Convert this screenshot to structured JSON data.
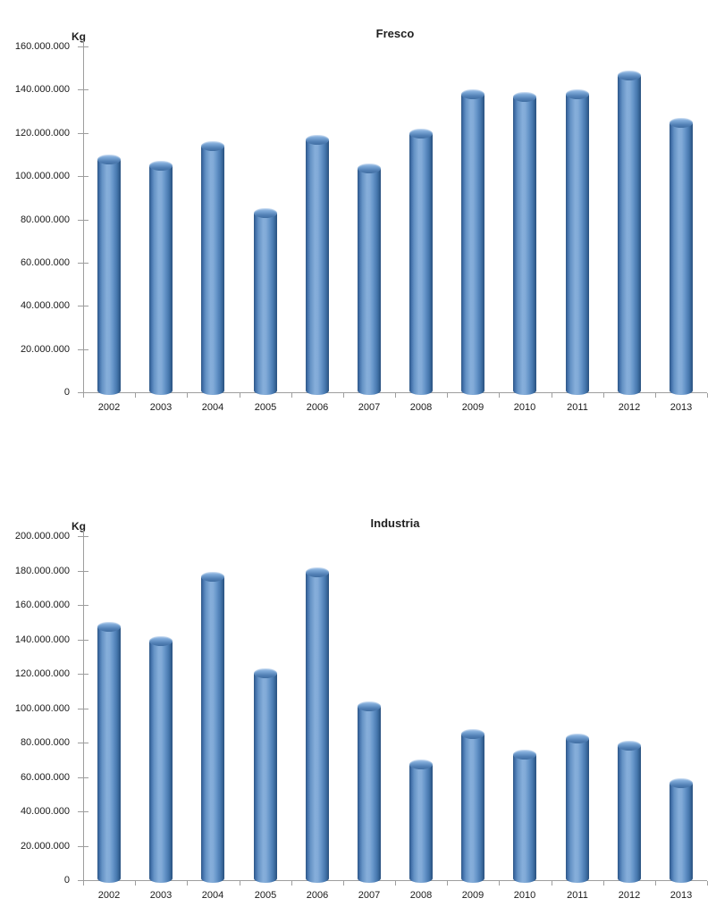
{
  "chart_data": [
    {
      "type": "bar",
      "title": "Fresco",
      "unit_label": "Kg",
      "categories": [
        "2002",
        "2003",
        "2004",
        "2005",
        "2006",
        "2007",
        "2008",
        "2009",
        "2010",
        "2011",
        "2012",
        "2013"
      ],
      "values": [
        110000000,
        107000000,
        116000000,
        85000000,
        119000000,
        106000000,
        122000000,
        140000000,
        139000000,
        140000000,
        149000000,
        127000000
      ],
      "xlabel": "",
      "ylabel": "Kg",
      "ylim": [
        0,
        160000000
      ],
      "ytick_step": 20000000,
      "grid": "off",
      "legend": "none",
      "bar_style": "3d-cylinder",
      "number_format": "thousands-dot"
    },
    {
      "type": "bar",
      "title": "Industria",
      "unit_label": "Kg",
      "categories": [
        "2002",
        "2003",
        "2004",
        "2005",
        "2006",
        "2007",
        "2008",
        "2009",
        "2010",
        "2011",
        "2012",
        "2013"
      ],
      "values": [
        150000000,
        142000000,
        179000000,
        123000000,
        182000000,
        104000000,
        70000000,
        88000000,
        76000000,
        85000000,
        81000000,
        59000000
      ],
      "xlabel": "",
      "ylabel": "Kg",
      "ylim": [
        0,
        200000000
      ],
      "ytick_step": 20000000,
      "grid": "off",
      "legend": "none",
      "bar_style": "3d-cylinder",
      "number_format": "thousands-dot"
    }
  ],
  "colors": {
    "background": "#FFFFFF",
    "bar_main": "#4F81BD",
    "bar_dark": "#2D5584",
    "bar_light": "#86AEDA",
    "axis": "#9E9E9E",
    "text": "#1A1A1A"
  }
}
